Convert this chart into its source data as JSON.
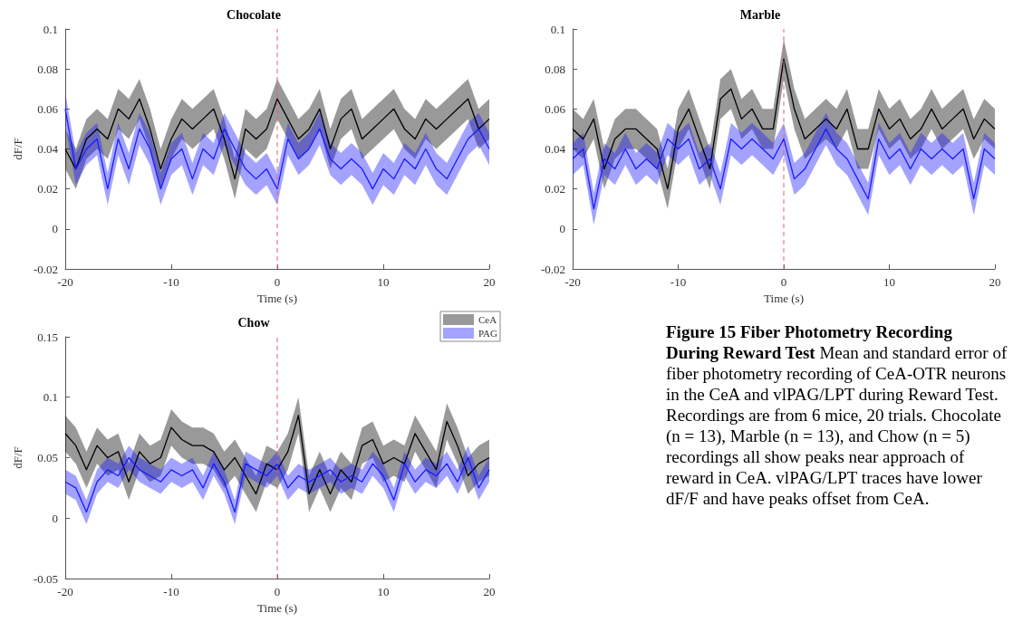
{
  "chart_data": [
    {
      "type": "line",
      "title": "Chocolate",
      "xlabel": "Time (s)",
      "ylabel": "dF/F",
      "marker": "none",
      "xlim": [
        -20,
        20
      ],
      "xticks": [
        -20,
        -10,
        0,
        10,
        20
      ],
      "ylim": [
        -0.02,
        0.1
      ],
      "yticks": [
        -0.02,
        0,
        0.02,
        0.04,
        0.06,
        0.08,
        0.1
      ],
      "x": [
        -20,
        -19,
        -18,
        -17,
        -16,
        -15,
        -14,
        -13,
        -12,
        -11,
        -10,
        -9,
        -8,
        -7,
        -6,
        -5,
        -4,
        -3,
        -2,
        -1,
        0,
        1,
        2,
        3,
        4,
        5,
        6,
        7,
        8,
        9,
        10,
        11,
        12,
        13,
        14,
        15,
        16,
        17,
        18,
        19,
        20
      ],
      "ref_lines": [
        {
          "axis": "x",
          "value": 0,
          "color": "#e06666",
          "line_style": "dashed"
        }
      ],
      "series": [
        {
          "color": "#000000",
          "values": [
            0.04,
            0.03,
            0.045,
            0.05,
            0.045,
            0.06,
            0.055,
            0.065,
            0.05,
            0.03,
            0.045,
            0.055,
            0.05,
            0.055,
            0.06,
            0.045,
            0.025,
            0.05,
            0.045,
            0.05,
            0.065,
            0.055,
            0.045,
            0.05,
            0.06,
            0.04,
            0.055,
            0.06,
            0.045,
            0.05,
            0.055,
            0.06,
            0.05,
            0.045,
            0.055,
            0.05,
            0.055,
            0.06,
            0.065,
            0.05,
            0.055
          ],
          "lower": [
            0.03,
            0.02,
            0.035,
            0.04,
            0.035,
            0.05,
            0.045,
            0.055,
            0.04,
            0.02,
            0.035,
            0.045,
            0.04,
            0.045,
            0.05,
            0.035,
            0.015,
            0.04,
            0.035,
            0.04,
            0.055,
            0.045,
            0.035,
            0.04,
            0.05,
            0.03,
            0.045,
            0.05,
            0.035,
            0.04,
            0.045,
            0.05,
            0.04,
            0.035,
            0.045,
            0.04,
            0.045,
            0.05,
            0.055,
            0.04,
            0.045
          ],
          "upper": [
            0.05,
            0.04,
            0.055,
            0.06,
            0.055,
            0.07,
            0.065,
            0.075,
            0.06,
            0.04,
            0.055,
            0.065,
            0.06,
            0.065,
            0.07,
            0.055,
            0.035,
            0.06,
            0.055,
            0.06,
            0.075,
            0.065,
            0.055,
            0.06,
            0.07,
            0.05,
            0.065,
            0.07,
            0.055,
            0.06,
            0.065,
            0.07,
            0.06,
            0.055,
            0.065,
            0.06,
            0.065,
            0.07,
            0.075,
            0.06,
            0.065
          ]
        },
        {
          "color": "#1a1aff",
          "values": [
            0.06,
            0.03,
            0.04,
            0.045,
            0.02,
            0.045,
            0.03,
            0.05,
            0.04,
            0.02,
            0.035,
            0.04,
            0.025,
            0.04,
            0.035,
            0.05,
            0.04,
            0.03,
            0.025,
            0.03,
            0.02,
            0.045,
            0.035,
            0.04,
            0.05,
            0.035,
            0.03,
            0.035,
            0.03,
            0.02,
            0.03,
            0.025,
            0.035,
            0.03,
            0.04,
            0.03,
            0.025,
            0.035,
            0.045,
            0.05,
            0.04
          ],
          "lower": [
            0.052,
            0.022,
            0.032,
            0.037,
            0.012,
            0.037,
            0.022,
            0.042,
            0.032,
            0.012,
            0.027,
            0.032,
            0.017,
            0.032,
            0.027,
            0.042,
            0.032,
            0.022,
            0.017,
            0.022,
            0.012,
            0.037,
            0.027,
            0.032,
            0.042,
            0.027,
            0.022,
            0.027,
            0.022,
            0.012,
            0.022,
            0.017,
            0.027,
            0.022,
            0.032,
            0.022,
            0.017,
            0.027,
            0.037,
            0.042,
            0.032
          ],
          "upper": [
            0.068,
            0.038,
            0.048,
            0.053,
            0.028,
            0.053,
            0.038,
            0.058,
            0.048,
            0.028,
            0.043,
            0.048,
            0.033,
            0.048,
            0.043,
            0.058,
            0.048,
            0.038,
            0.033,
            0.038,
            0.028,
            0.053,
            0.043,
            0.048,
            0.058,
            0.043,
            0.038,
            0.043,
            0.038,
            0.028,
            0.038,
            0.033,
            0.043,
            0.038,
            0.048,
            0.038,
            0.033,
            0.043,
            0.053,
            0.058,
            0.048
          ]
        }
      ]
    },
    {
      "type": "line",
      "title": "Marble",
      "xlabel": "Time (s)",
      "marker": "none",
      "xlim": [
        -20,
        20
      ],
      "xticks": [
        -20,
        -10,
        0,
        10,
        20
      ],
      "ylim": [
        -0.02,
        0.1
      ],
      "yticks": [
        -0.02,
        0,
        0.02,
        0.04,
        0.06,
        0.08,
        0.1
      ],
      "x": [
        -20,
        -19,
        -18,
        -17,
        -16,
        -15,
        -14,
        -13,
        -12,
        -11,
        -10,
        -9,
        -8,
        -7,
        -6,
        -5,
        -4,
        -3,
        -2,
        -1,
        0,
        1,
        2,
        3,
        4,
        5,
        6,
        7,
        8,
        9,
        10,
        11,
        12,
        13,
        14,
        15,
        16,
        17,
        18,
        19,
        20
      ],
      "ref_lines": [
        {
          "axis": "x",
          "value": 0,
          "color": "#e06666",
          "line_style": "dashed"
        }
      ],
      "series": [
        {
          "color": "#000000",
          "values": [
            0.05,
            0.045,
            0.055,
            0.03,
            0.045,
            0.05,
            0.05,
            0.045,
            0.04,
            0.02,
            0.05,
            0.06,
            0.045,
            0.03,
            0.065,
            0.07,
            0.055,
            0.06,
            0.05,
            0.05,
            0.085,
            0.06,
            0.045,
            0.05,
            0.055,
            0.05,
            0.06,
            0.04,
            0.04,
            0.06,
            0.05,
            0.055,
            0.045,
            0.05,
            0.06,
            0.05,
            0.055,
            0.06,
            0.045,
            0.055,
            0.05
          ],
          "lower": [
            0.04,
            0.035,
            0.045,
            0.02,
            0.035,
            0.04,
            0.04,
            0.035,
            0.03,
            0.01,
            0.04,
            0.05,
            0.035,
            0.02,
            0.055,
            0.06,
            0.045,
            0.05,
            0.04,
            0.04,
            0.075,
            0.05,
            0.035,
            0.04,
            0.045,
            0.04,
            0.05,
            0.03,
            0.03,
            0.05,
            0.04,
            0.045,
            0.035,
            0.04,
            0.05,
            0.04,
            0.045,
            0.05,
            0.035,
            0.045,
            0.04
          ],
          "upper": [
            0.06,
            0.055,
            0.065,
            0.04,
            0.055,
            0.06,
            0.06,
            0.055,
            0.05,
            0.03,
            0.06,
            0.07,
            0.055,
            0.04,
            0.075,
            0.08,
            0.065,
            0.07,
            0.06,
            0.06,
            0.095,
            0.07,
            0.055,
            0.06,
            0.065,
            0.06,
            0.07,
            0.05,
            0.05,
            0.07,
            0.06,
            0.065,
            0.055,
            0.06,
            0.07,
            0.06,
            0.065,
            0.07,
            0.055,
            0.065,
            0.06
          ]
        },
        {
          "color": "#1a1aff",
          "values": [
            0.035,
            0.04,
            0.01,
            0.035,
            0.03,
            0.04,
            0.03,
            0.035,
            0.03,
            0.045,
            0.04,
            0.045,
            0.03,
            0.035,
            0.02,
            0.045,
            0.04,
            0.045,
            0.04,
            0.035,
            0.045,
            0.025,
            0.03,
            0.04,
            0.05,
            0.04,
            0.035,
            0.025,
            0.015,
            0.045,
            0.035,
            0.04,
            0.03,
            0.04,
            0.035,
            0.04,
            0.035,
            0.04,
            0.015,
            0.04,
            0.035
          ],
          "lower": [
            0.027,
            0.032,
            0.002,
            0.027,
            0.022,
            0.032,
            0.022,
            0.027,
            0.022,
            0.037,
            0.032,
            0.037,
            0.022,
            0.027,
            0.012,
            0.037,
            0.032,
            0.037,
            0.032,
            0.027,
            0.037,
            0.017,
            0.022,
            0.032,
            0.042,
            0.032,
            0.027,
            0.017,
            0.007,
            0.037,
            0.027,
            0.032,
            0.022,
            0.032,
            0.027,
            0.032,
            0.027,
            0.032,
            0.007,
            0.032,
            0.027
          ],
          "upper": [
            0.043,
            0.048,
            0.018,
            0.043,
            0.038,
            0.048,
            0.038,
            0.043,
            0.038,
            0.053,
            0.048,
            0.053,
            0.038,
            0.043,
            0.028,
            0.053,
            0.048,
            0.053,
            0.048,
            0.043,
            0.053,
            0.033,
            0.038,
            0.048,
            0.058,
            0.048,
            0.043,
            0.033,
            0.023,
            0.053,
            0.043,
            0.048,
            0.038,
            0.048,
            0.043,
            0.048,
            0.043,
            0.048,
            0.023,
            0.048,
            0.043
          ]
        }
      ]
    },
    {
      "type": "line",
      "title": "Chow",
      "xlabel": "Time (s)",
      "ylabel": "dF/F",
      "marker": "none",
      "legend": "top right",
      "xlim": [
        -20,
        20
      ],
      "xticks": [
        -20,
        -10,
        0,
        10,
        20
      ],
      "ylim": [
        -0.05,
        0.15
      ],
      "yticks": [
        -0.05,
        0,
        0.05,
        0.1,
        0.15
      ],
      "x": [
        -20,
        -19,
        -18,
        -17,
        -16,
        -15,
        -14,
        -13,
        -12,
        -11,
        -10,
        -9,
        -8,
        -7,
        -6,
        -5,
        -4,
        -3,
        -2,
        -1,
        0,
        1,
        2,
        3,
        4,
        5,
        6,
        7,
        8,
        9,
        10,
        11,
        12,
        13,
        14,
        15,
        16,
        17,
        18,
        19,
        20
      ],
      "ref_lines": [
        {
          "axis": "x",
          "value": 0,
          "color": "#e06666",
          "line_style": "dashed"
        }
      ],
      "series": [
        {
          "name": "CeA",
          "color": "#000000",
          "values": [
            0.07,
            0.06,
            0.04,
            0.06,
            0.05,
            0.055,
            0.03,
            0.055,
            0.045,
            0.05,
            0.075,
            0.065,
            0.06,
            0.06,
            0.055,
            0.04,
            0.05,
            0.035,
            0.02,
            0.045,
            0.04,
            0.055,
            0.085,
            0.02,
            0.04,
            0.02,
            0.04,
            0.03,
            0.06,
            0.065,
            0.045,
            0.05,
            0.045,
            0.07,
            0.055,
            0.04,
            0.08,
            0.06,
            0.035,
            0.045,
            0.05
          ],
          "lower": [
            0.055,
            0.045,
            0.025,
            0.045,
            0.035,
            0.04,
            0.015,
            0.04,
            0.03,
            0.035,
            0.06,
            0.05,
            0.045,
            0.045,
            0.04,
            0.025,
            0.035,
            0.02,
            0.005,
            0.03,
            0.025,
            0.04,
            0.07,
            0.005,
            0.025,
            0.005,
            0.025,
            0.015,
            0.045,
            0.05,
            0.03,
            0.035,
            0.03,
            0.055,
            0.04,
            0.025,
            0.065,
            0.045,
            0.02,
            0.03,
            0.035
          ],
          "upper": [
            0.085,
            0.075,
            0.055,
            0.075,
            0.065,
            0.07,
            0.045,
            0.07,
            0.06,
            0.065,
            0.09,
            0.08,
            0.075,
            0.075,
            0.07,
            0.055,
            0.065,
            0.05,
            0.035,
            0.06,
            0.055,
            0.07,
            0.1,
            0.035,
            0.055,
            0.035,
            0.055,
            0.045,
            0.075,
            0.08,
            0.06,
            0.065,
            0.06,
            0.085,
            0.07,
            0.055,
            0.095,
            0.075,
            0.05,
            0.06,
            0.065
          ]
        },
        {
          "name": "PAG",
          "color": "#1a1aff",
          "values": [
            0.03,
            0.025,
            0.005,
            0.03,
            0.04,
            0.035,
            0.05,
            0.04,
            0.035,
            0.03,
            0.04,
            0.035,
            0.04,
            0.025,
            0.045,
            0.03,
            0.005,
            0.045,
            0.04,
            0.035,
            0.045,
            0.025,
            0.035,
            0.03,
            0.035,
            0.04,
            0.03,
            0.035,
            0.03,
            0.045,
            0.035,
            0.015,
            0.045,
            0.03,
            0.04,
            0.035,
            0.045,
            0.03,
            0.05,
            0.025,
            0.04
          ],
          "lower": [
            0.02,
            0.015,
            -0.005,
            0.02,
            0.03,
            0.025,
            0.04,
            0.03,
            0.025,
            0.02,
            0.03,
            0.025,
            0.03,
            0.015,
            0.035,
            0.02,
            -0.005,
            0.035,
            0.03,
            0.025,
            0.035,
            0.015,
            0.025,
            0.02,
            0.025,
            0.03,
            0.02,
            0.025,
            0.02,
            0.035,
            0.025,
            0.005,
            0.035,
            0.02,
            0.03,
            0.025,
            0.035,
            0.02,
            0.04,
            0.015,
            0.03
          ],
          "upper": [
            0.04,
            0.035,
            0.015,
            0.04,
            0.05,
            0.045,
            0.06,
            0.05,
            0.045,
            0.04,
            0.05,
            0.045,
            0.05,
            0.035,
            0.055,
            0.04,
            0.015,
            0.055,
            0.05,
            0.045,
            0.055,
            0.035,
            0.045,
            0.04,
            0.045,
            0.05,
            0.04,
            0.045,
            0.04,
            0.055,
            0.045,
            0.025,
            0.055,
            0.04,
            0.05,
            0.045,
            0.055,
            0.04,
            0.06,
            0.035,
            0.05
          ]
        }
      ]
    },
    {
      "type": "other",
      "title": "Figure 15 Fiber Photometry Recording During Reward Test",
      "annotations": [
        "Mean and standard error of fiber photometry recording of CeA-OTR neurons in the CeA and vlPAG/LPT during Reward Test. Recordings are from 6 mice, 20 trials. Chocolate (n = 13), Marble (n = 13), and Chow (n = 5) recordings all show peaks near approach of reward in CeA. vlPAG/LPT traces have lower dF/F and have peaks offset from CeA."
      ]
    }
  ]
}
